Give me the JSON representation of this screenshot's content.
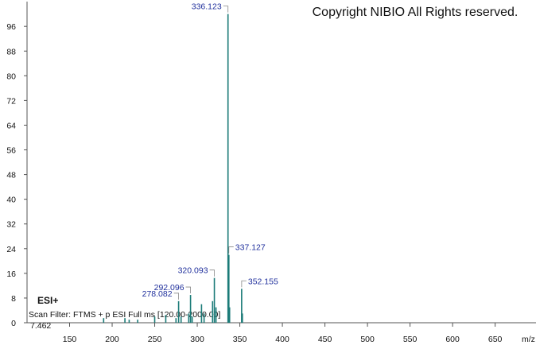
{
  "chart_data": {
    "type": "stem",
    "annotation": "Copyright NIBIO All Rights reserved.",
    "ion_mode": "ESI+",
    "scan_filter": "Scan Filter: FTMS + p ESI Full ms [120.00-2000.00]",
    "base_intensity": 7.462,
    "x_label": "m/z",
    "color": "#1b7b78",
    "label_color": "#1f2f9c",
    "xlim": [
      100,
      698
    ],
    "xticks": [
      150,
      200,
      250,
      300,
      350,
      400,
      450,
      500,
      550,
      600,
      650
    ],
    "ylim": [
      0,
      103
    ],
    "yticks": [
      0,
      8,
      16,
      24,
      32,
      40,
      48,
      56,
      64,
      72,
      80,
      88,
      96
    ],
    "labeled_peaks": {
      "x": [
        278.082,
        292.096,
        320.093,
        336.123,
        337.127,
        352.155
      ],
      "values": [
        7,
        9,
        14.5,
        100,
        22,
        11
      ]
    },
    "peaks": {
      "x": [
        190,
        215,
        220,
        230,
        250,
        263,
        275,
        281,
        290,
        294,
        305,
        308,
        318,
        322,
        338,
        353
      ],
      "values": [
        1.5,
        1.5,
        1,
        1,
        2,
        2.5,
        1.5,
        2,
        3,
        2,
        6,
        3,
        7,
        5,
        5,
        3
      ]
    }
  }
}
